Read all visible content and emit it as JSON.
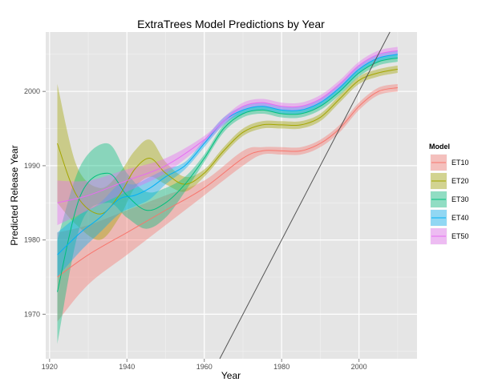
{
  "chart_data": {
    "type": "line",
    "title": "ExtraTrees Model Predictions by Year",
    "xlabel": "Year",
    "ylabel": "Predicted Release Year",
    "xlim": [
      1919,
      2015
    ],
    "ylim": [
      1964,
      2008
    ],
    "x_ticks": [
      "1920",
      "1940",
      "1960",
      "1980",
      "2000"
    ],
    "y_ticks": [
      "1970",
      "1980",
      "1990",
      "2000"
    ],
    "grid": true,
    "legend_title": "Model",
    "legend_position": "right",
    "reference_line": {
      "slope": 1,
      "intercept": 0,
      "color": "#555555"
    },
    "series": [
      {
        "name": "ET10",
        "color": "#F8766D",
        "x": [
          1922,
          1930,
          1940,
          1950,
          1960,
          1970,
          1975,
          1980,
          1985,
          1990,
          1995,
          2000,
          2005,
          2010
        ],
        "y": [
          1975,
          1978,
          1981,
          1984,
          1987,
          1991,
          1992,
          1992,
          1992,
          1993,
          1995,
          1998,
          2000,
          2000.5
        ],
        "lower": [
          1969,
          1974,
          1978,
          1982,
          1986,
          1990,
          1991.5,
          1991.5,
          1991.5,
          1992.5,
          1994.5,
          1997.5,
          1999.5,
          2000
        ],
        "upper": [
          1981,
          1982,
          1984,
          1986,
          1988,
          1992,
          1992.5,
          1992.5,
          1992.5,
          1993.5,
          1995.5,
          1998.5,
          2000.5,
          2001
        ]
      },
      {
        "name": "ET20",
        "color": "#A3A500",
        "x": [
          1922,
          1927,
          1933,
          1938,
          1942,
          1946,
          1950,
          1955,
          1960,
          1965,
          1970,
          1975,
          1980,
          1985,
          1990,
          1995,
          2000,
          2005,
          2010
        ],
        "y": [
          1993,
          1986,
          1983.5,
          1986,
          1989.5,
          1991,
          1989,
          1987.5,
          1989,
          1992,
          1994.5,
          1995.5,
          1995.5,
          1995.5,
          1996.5,
          1999,
          2001.5,
          2002.5,
          2003
        ],
        "lower": [
          1985,
          1982,
          1980,
          1983,
          1987,
          1988.5,
          1987.5,
          1986.5,
          1988.5,
          1991.5,
          1994,
          1995,
          1995,
          1995,
          1996,
          1998.5,
          2001,
          2002,
          2002.5
        ],
        "upper": [
          2001,
          1990,
          1987,
          1989,
          1992,
          1993.5,
          1990.5,
          1988.5,
          1989.5,
          1992.5,
          1995,
          1996,
          1996,
          1996,
          1997,
          1999.5,
          2002,
          2003,
          2003.5
        ]
      },
      {
        "name": "ET30",
        "color": "#00BF7D",
        "x": [
          1922,
          1928,
          1935,
          1940,
          1945,
          1950,
          1955,
          1960,
          1965,
          1970,
          1975,
          1980,
          1985,
          1990,
          1995,
          2000,
          2005,
          2010
        ],
        "y": [
          1973,
          1986,
          1989,
          1986,
          1984,
          1985,
          1987.5,
          1991,
          1995,
          1997,
          1997.5,
          1997,
          1997,
          1998,
          2000,
          2002.5,
          2004,
          2004.5
        ],
        "lower": [
          1966,
          1982,
          1985,
          1983,
          1981.5,
          1983,
          1986.5,
          1990.5,
          1994.5,
          1996.5,
          1997,
          1996.5,
          1996.5,
          1997.5,
          1999.5,
          2002,
          2003.5,
          2004
        ],
        "upper": [
          1980,
          1990,
          1993,
          1989,
          1986.5,
          1987,
          1988.5,
          1991.5,
          1995.5,
          1997.5,
          1998,
          1997.5,
          1997.5,
          1998.5,
          2000.5,
          2003,
          2004.5,
          2005
        ]
      },
      {
        "name": "ET40",
        "color": "#00B0F6",
        "x": [
          1922,
          1928,
          1933,
          1938,
          1942,
          1946,
          1950,
          1955,
          1960,
          1965,
          1970,
          1975,
          1980,
          1985,
          1990,
          1995,
          2000,
          2005,
          2010
        ],
        "y": [
          1978,
          1981,
          1983,
          1985.5,
          1986,
          1987,
          1988.5,
          1990,
          1993,
          1996,
          1997.5,
          1998,
          1997.5,
          1997.5,
          1998.5,
          2000.5,
          2003,
          2004.5,
          2005
        ],
        "lower": [
          1975,
          1978.5,
          1981,
          1983.5,
          1984.5,
          1985.5,
          1987.5,
          1989.5,
          1992.5,
          1995.5,
          1997,
          1997.5,
          1997,
          1997,
          1998,
          2000,
          2002.5,
          2004,
          2004.5
        ],
        "upper": [
          1981,
          1983.5,
          1985,
          1987.5,
          1987.5,
          1988.5,
          1989.5,
          1990.5,
          1993.5,
          1996.5,
          1998,
          1998.5,
          1998,
          1998,
          1999,
          2001,
          2003.5,
          2005,
          2005.5
        ]
      },
      {
        "name": "ET50",
        "color": "#E76BF3",
        "x": [
          1922,
          1930,
          1940,
          1950,
          1960,
          1965,
          1970,
          1975,
          1980,
          1985,
          1990,
          1995,
          2000,
          2005,
          2010
        ],
        "y": [
          1985,
          1986,
          1988,
          1990,
          1993.5,
          1996,
          1998,
          1998.5,
          1998,
          1998,
          1999,
          2001,
          2003.5,
          2005,
          2005.5
        ],
        "lower": [
          1982,
          1984,
          1986.5,
          1989,
          1993,
          1995.5,
          1997.5,
          1998,
          1997.5,
          1997.5,
          1998.5,
          2000.5,
          2003,
          2004.5,
          2005
        ],
        "upper": [
          1988,
          1988,
          1989.5,
          1991,
          1994,
          1996.5,
          1998.5,
          1999,
          1998.5,
          1998.5,
          1999.5,
          2001.5,
          2004,
          2005.5,
          2006
        ]
      }
    ]
  }
}
